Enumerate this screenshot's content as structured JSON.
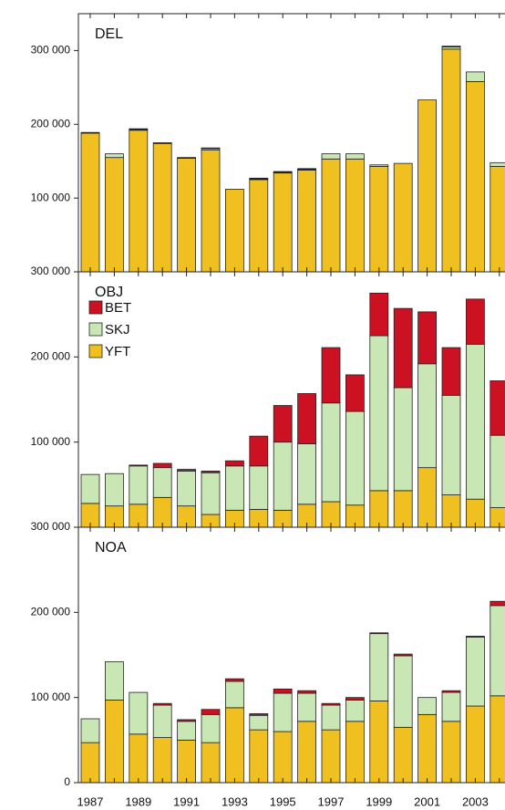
{
  "chart_data": [
    {
      "type": "bar",
      "stacked": true,
      "title": "DEL",
      "series": [
        {
          "color": "#f0c020",
          "values": [
            188000,
            155000,
            192000,
            174000,
            154000,
            165000,
            112000,
            125000,
            134000,
            138000,
            153000,
            153000,
            143000,
            147000,
            233000,
            302000,
            258000,
            143000
          ]
        },
        {
          "color": "#c9e6b5",
          "values": [
            1000,
            5000,
            1000,
            1000,
            1000,
            2000,
            0,
            1000,
            1000,
            1000,
            7000,
            7000,
            2000,
            0,
            0,
            3000,
            13000,
            5000
          ]
        },
        {
          "color": "#cc1122",
          "values": [
            0,
            0,
            1000,
            0,
            0,
            1000,
            0,
            1000,
            1000,
            1000,
            0,
            0,
            0,
            0,
            0,
            1000,
            0,
            0
          ]
        }
      ],
      "ylim": [
        0,
        350000
      ],
      "yticks": [
        {
          "value": 100000,
          "label": "100 000"
        },
        {
          "value": 200000,
          "label": "200 000"
        },
        {
          "value": 300000,
          "label": "300 000"
        }
      ]
    },
    {
      "type": "bar",
      "stacked": true,
      "title": "OBJ",
      "legend": "upper left",
      "series": [
        {
          "name": "YFT",
          "color": "#f0c020",
          "values": [
            28000,
            25000,
            27000,
            35000,
            25000,
            15000,
            20000,
            21000,
            20000,
            27000,
            30000,
            26000,
            43000,
            43000,
            70000,
            38000,
            33000,
            23000
          ]
        },
        {
          "name": "SKJ",
          "color": "#c9e6b5",
          "values": [
            34000,
            38000,
            45000,
            35000,
            41000,
            49000,
            52000,
            51000,
            80000,
            71000,
            116000,
            110000,
            182000,
            121000,
            122000,
            117000,
            182000,
            85000
          ]
        },
        {
          "name": "BET",
          "color": "#cc1122",
          "values": [
            0,
            0,
            1000,
            5000,
            2000,
            2000,
            6000,
            35000,
            43000,
            59000,
            65000,
            43000,
            50000,
            93000,
            61000,
            56000,
            53000,
            64000
          ]
        }
      ],
      "ylim": [
        0,
        300000
      ],
      "yticks": [
        {
          "value": 100000,
          "label": "100 000"
        },
        {
          "value": 200000,
          "label": "200 000"
        },
        {
          "value": 300000,
          "label": "300 000"
        }
      ]
    },
    {
      "type": "bar",
      "stacked": true,
      "title": "NOA",
      "categories": [
        "1987",
        null,
        "1989",
        null,
        "1991",
        null,
        "1993",
        null,
        "1995",
        null,
        "1997",
        null,
        "1999",
        null,
        "2001",
        null,
        "2003",
        null
      ],
      "series": [
        {
          "color": "#f0c020",
          "values": [
            47000,
            97000,
            57000,
            53000,
            50000,
            47000,
            88000,
            62000,
            60000,
            72000,
            62000,
            72000,
            96000,
            65000,
            80000,
            72000,
            90000,
            102000
          ]
        },
        {
          "color": "#c9e6b5",
          "values": [
            28000,
            45000,
            49000,
            38000,
            22000,
            33000,
            31000,
            17000,
            45000,
            33000,
            29000,
            25000,
            79000,
            84000,
            20000,
            34000,
            81000,
            106000
          ]
        },
        {
          "color": "#cc1122",
          "values": [
            0,
            0,
            0,
            2000,
            2000,
            6000,
            3000,
            2000,
            5000,
            3000,
            2000,
            3000,
            1000,
            2000,
            0,
            2000,
            1000,
            5000
          ]
        }
      ],
      "ylim": [
        0,
        300000
      ],
      "yticks": [
        0,
        {
          "value": 100000,
          "label": "100 000"
        },
        {
          "value": 200000,
          "label": "200 000"
        },
        {
          "value": 300000,
          "label": "300 000"
        }
      ]
    }
  ]
}
